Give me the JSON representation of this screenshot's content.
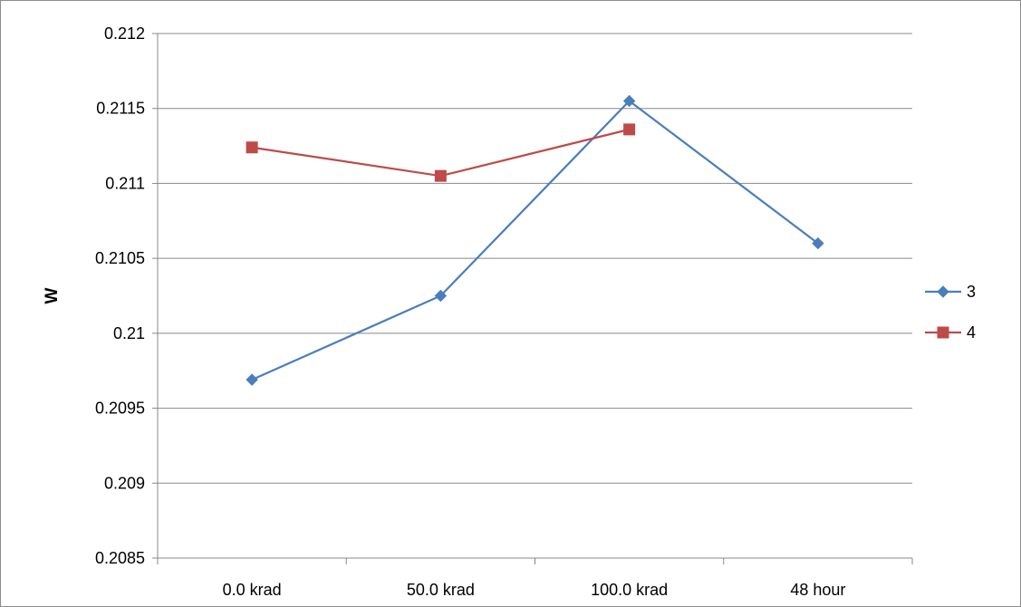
{
  "chart_data": {
    "type": "line",
    "title": "",
    "xlabel": "",
    "ylabel": "W",
    "categories": [
      "0.0 krad",
      "50.0 krad",
      "100.0 krad",
      "48 hour"
    ],
    "ylim": [
      0.2085,
      0.212
    ],
    "ytick_labels": [
      "0.212",
      "0.2115",
      "0.211",
      "0.2105",
      "0.21",
      "0.2095",
      "0.209",
      "0.2085"
    ],
    "grid": true,
    "legend_position": "right",
    "series": [
      {
        "name": "3",
        "color": "#4a7ebb",
        "marker": "diamond",
        "values": [
          0.20969,
          0.21025,
          0.21155,
          0.2106
        ]
      },
      {
        "name": "4",
        "color": "#be4b48",
        "marker": "square",
        "values": [
          0.21124,
          0.21105,
          0.21136,
          null
        ]
      }
    ]
  }
}
